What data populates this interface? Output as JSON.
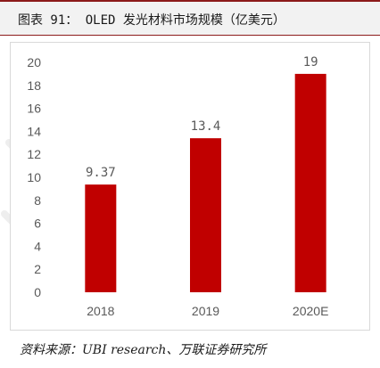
{
  "figure": {
    "title": "图表 91： OLED 发光材料市场规模（亿美元）",
    "source": "资料来源：UBI research、万联证券研究所"
  },
  "colors": {
    "bar": "#c00000",
    "title_rule": "#8c1a1a",
    "title_bg": "#f2f2f2",
    "axis_text": "#595959",
    "frame": "#d9d9d9"
  },
  "chart_data": {
    "type": "bar",
    "categories": [
      "2018",
      "2019",
      "2020E"
    ],
    "values": [
      9.37,
      13.4,
      19
    ],
    "data_labels": [
      "9.37",
      "13.4",
      "19"
    ],
    "title": "",
    "xlabel": "",
    "ylabel": "",
    "ylim": [
      0,
      20
    ],
    "yticks": [
      0,
      2,
      4,
      6,
      8,
      10,
      12,
      14,
      16,
      18,
      20
    ],
    "grid": false,
    "legend": "none"
  }
}
